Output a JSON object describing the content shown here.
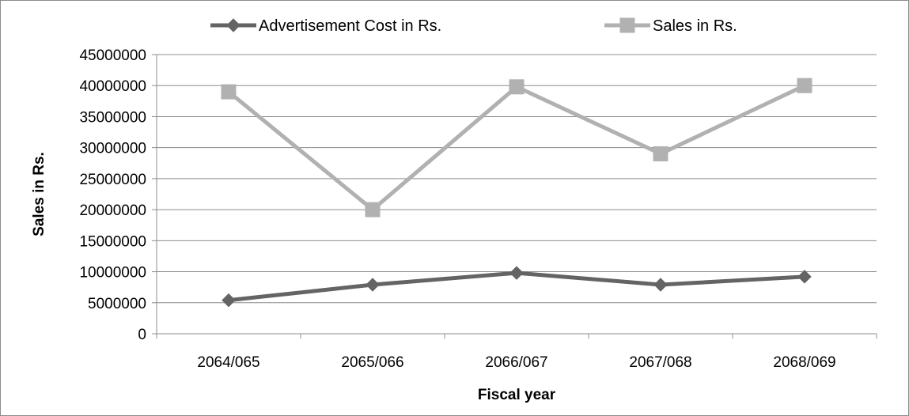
{
  "chart_data": {
    "type": "line",
    "categories": [
      "2064/065",
      "2065/066",
      "2066/067",
      "2067/068",
      "2068/069"
    ],
    "series": [
      {
        "name": "Advertisement Cost in Rs.",
        "values": [
          5400000,
          7900000,
          9800000,
          7900000,
          9200000
        ],
        "color": "#646464",
        "marker": "diamond"
      },
      {
        "name": "Sales in Rs.",
        "values": [
          39000000,
          20000000,
          39800000,
          29000000,
          40000000
        ],
        "color": "#b1b1b1",
        "marker": "square"
      }
    ],
    "title": "",
    "xlabel": "Fiscal year",
    "ylabel": "Sales in Rs.",
    "ylim": [
      0,
      45000000
    ],
    "yticks": [
      0,
      5000000,
      10000000,
      15000000,
      20000000,
      25000000,
      30000000,
      35000000,
      40000000,
      45000000
    ],
    "grid": "horizontal",
    "legend_position": "top"
  }
}
